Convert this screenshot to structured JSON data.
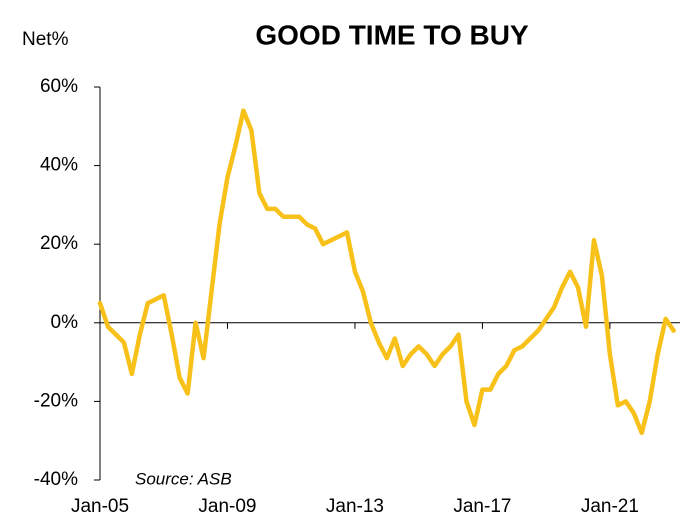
{
  "chart_data": {
    "type": "line",
    "title": "GOOD TIME TO BUY",
    "y_label": "Net%",
    "annotation": "Source: ASB",
    "x": [
      2005,
      2005.25,
      2005.5,
      2005.75,
      2006,
      2006.25,
      2006.5,
      2006.75,
      2007,
      2007.25,
      2007.5,
      2007.75,
      2008,
      2008.25,
      2008.5,
      2008.75,
      2009,
      2009.25,
      2009.5,
      2009.75,
      2010,
      2010.25,
      2010.5,
      2010.75,
      2011,
      2011.25,
      2011.5,
      2011.75,
      2012,
      2012.25,
      2012.5,
      2012.75,
      2013,
      2013.25,
      2013.5,
      2013.75,
      2014,
      2014.25,
      2014.5,
      2014.75,
      2015,
      2015.25,
      2015.5,
      2015.75,
      2016,
      2016.25,
      2016.5,
      2016.75,
      2017,
      2017.25,
      2017.5,
      2017.75,
      2018,
      2018.25,
      2018.5,
      2018.75,
      2019,
      2019.25,
      2019.5,
      2019.75,
      2020,
      2020.25,
      2020.5,
      2020.75,
      2021,
      2021.25,
      2021.5,
      2021.75,
      2022,
      2022.25,
      2022.5,
      2022.75,
      2023
    ],
    "series": [
      {
        "name": "Good time to buy",
        "color": "#f8c11a",
        "values": [
          5,
          -1,
          -3,
          -5,
          -13,
          -3,
          5,
          6,
          7,
          -3,
          -14,
          -18,
          0,
          -9,
          8,
          25,
          37,
          45,
          54,
          49,
          33,
          29,
          29,
          27,
          27,
          27,
          25,
          24,
          20,
          21,
          22,
          23,
          13,
          8,
          0,
          -5,
          -9,
          -4,
          -11,
          -8,
          -6,
          -8,
          -11,
          -8,
          -6,
          -3,
          -20,
          -26,
          -17,
          -17,
          -13,
          -11,
          -7,
          -6,
          -4,
          -2,
          1,
          4,
          9,
          13,
          9,
          -1,
          21,
          12,
          -8,
          -21,
          -20,
          -23,
          -28,
          -20,
          -8,
          1,
          -2
        ]
      }
    ],
    "xlim": [
      2005,
      2023.2
    ],
    "xticks": [
      {
        "value": 2005,
        "label": "Jan-05"
      },
      {
        "value": 2009,
        "label": "Jan-09"
      },
      {
        "value": 2013,
        "label": "Jan-13"
      },
      {
        "value": 2017,
        "label": "Jan-17"
      },
      {
        "value": 2021,
        "label": "Jan-21"
      }
    ],
    "ylim": [
      -40,
      60
    ],
    "yticks": [
      {
        "value": -40,
        "label": "-40%"
      },
      {
        "value": -20,
        "label": "-20%"
      },
      {
        "value": 0,
        "label": "0%"
      },
      {
        "value": 20,
        "label": "20%"
      },
      {
        "value": 40,
        "label": "40%"
      },
      {
        "value": 60,
        "label": "60%"
      }
    ],
    "grid": false
  }
}
